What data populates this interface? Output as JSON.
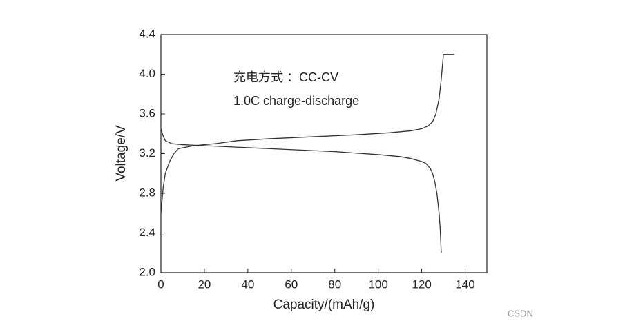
{
  "chart_data": {
    "type": "line",
    "xlabel": "Capacity/(mAh/g)",
    "ylabel": "Voltage/V",
    "annotations": [
      "充电方式 ：CC-CV",
      "1.0C charge-discharge"
    ],
    "watermark": "CSDN",
    "xlim": [
      0,
      150
    ],
    "xticks": [
      0,
      20,
      40,
      60,
      80,
      100,
      120,
      140
    ],
    "ylim": [
      2.0,
      4.4
    ],
    "yticks": [
      {
        "value": 2.0,
        "label": "2.0"
      },
      2.4,
      2.8,
      3.2,
      3.6,
      {
        "value": 4.0,
        "label": "4.0"
      },
      4.4
    ],
    "series": [
      {
        "color": "#333333",
        "x": [
          0,
          1,
          2,
          4,
          6,
          8,
          15,
          25,
          35,
          50,
          70,
          90,
          105,
          115,
          120,
          123,
          125,
          126.5,
          128,
          129,
          130,
          135
        ],
        "values": [
          2.6,
          2.85,
          3.0,
          3.12,
          3.2,
          3.25,
          3.28,
          3.3,
          3.33,
          3.35,
          3.37,
          3.39,
          3.41,
          3.43,
          3.45,
          3.48,
          3.52,
          3.6,
          3.75,
          3.95,
          4.2,
          4.2
        ]
      },
      {
        "color": "#333333",
        "x": [
          0,
          1,
          2,
          5,
          10,
          20,
          40,
          60,
          80,
          100,
          110,
          115,
          120,
          122,
          124,
          125,
          126,
          127,
          128,
          128.5,
          129
        ],
        "values": [
          3.45,
          3.38,
          3.33,
          3.3,
          3.29,
          3.28,
          3.26,
          3.24,
          3.22,
          3.19,
          3.17,
          3.15,
          3.12,
          3.1,
          3.05,
          3.0,
          2.92,
          2.8,
          2.6,
          2.45,
          2.2
        ]
      }
    ]
  }
}
